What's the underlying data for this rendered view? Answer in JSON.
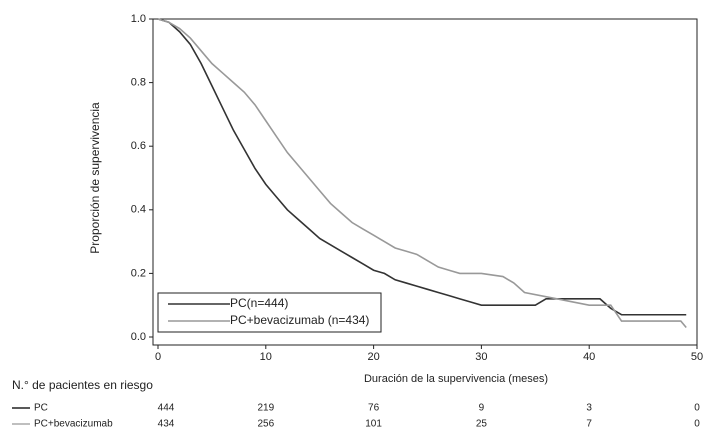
{
  "chart_data": {
    "type": "line",
    "x_label": "Duración de la supervivencia (meses)",
    "y_label": "Proporción de supervivencia",
    "xlim": [
      0,
      50
    ],
    "ylim": [
      0,
      1
    ],
    "xticks": [
      0,
      10,
      20,
      30,
      40,
      50
    ],
    "yticks": [
      {
        "value": 0,
        "label": "0.0"
      },
      0.2,
      0.4,
      0.6,
      0.8,
      {
        "value": 1,
        "label": "1.0"
      }
    ],
    "series": [
      {
        "name": "PC(n=444)",
        "color": "#333333",
        "x": [
          0,
          1,
          2,
          3,
          4,
          5,
          6,
          7,
          8,
          9,
          10,
          11,
          12,
          13,
          14,
          15,
          16,
          17,
          18,
          19,
          20,
          21,
          22,
          23,
          24,
          25,
          26,
          27,
          28,
          29,
          30,
          35,
          36,
          41,
          42,
          43,
          49
        ],
        "values": [
          1.0,
          0.99,
          0.96,
          0.92,
          0.86,
          0.79,
          0.72,
          0.65,
          0.59,
          0.53,
          0.48,
          0.44,
          0.4,
          0.37,
          0.34,
          0.31,
          0.29,
          0.27,
          0.25,
          0.23,
          0.21,
          0.2,
          0.18,
          0.17,
          0.16,
          0.15,
          0.14,
          0.13,
          0.12,
          0.11,
          0.1,
          0.1,
          0.12,
          0.12,
          0.09,
          0.07,
          0.07
        ]
      },
      {
        "name": "PC+bevacizumab (n=434)",
        "color": "#999999",
        "x": [
          0,
          1,
          2,
          3,
          4,
          5,
          6,
          7,
          8,
          9,
          10,
          11,
          12,
          13,
          14,
          15,
          16,
          17,
          18,
          19,
          20,
          21,
          22,
          23,
          24,
          25,
          26,
          27,
          28,
          30,
          32,
          33,
          34,
          37,
          40,
          42,
          43,
          48.5,
          49
        ],
        "values": [
          1.0,
          0.99,
          0.97,
          0.94,
          0.9,
          0.86,
          0.83,
          0.8,
          0.77,
          0.73,
          0.68,
          0.63,
          0.58,
          0.54,
          0.5,
          0.46,
          0.42,
          0.39,
          0.36,
          0.34,
          0.32,
          0.3,
          0.28,
          0.27,
          0.26,
          0.24,
          0.22,
          0.21,
          0.2,
          0.2,
          0.19,
          0.17,
          0.14,
          0.12,
          0.1,
          0.1,
          0.05,
          0.05,
          0.03
        ]
      }
    ],
    "risk_table": {
      "title": "N.° de pacientes en riesgo",
      "rows": [
        {
          "name": "PC",
          "color": "#222222",
          "values": [
            444,
            219,
            76,
            9,
            3,
            0
          ]
        },
        {
          "name": "PC+bevacizumab",
          "color": "#aaaaaa",
          "values": [
            434,
            256,
            101,
            25,
            7,
            0
          ]
        }
      ]
    }
  }
}
